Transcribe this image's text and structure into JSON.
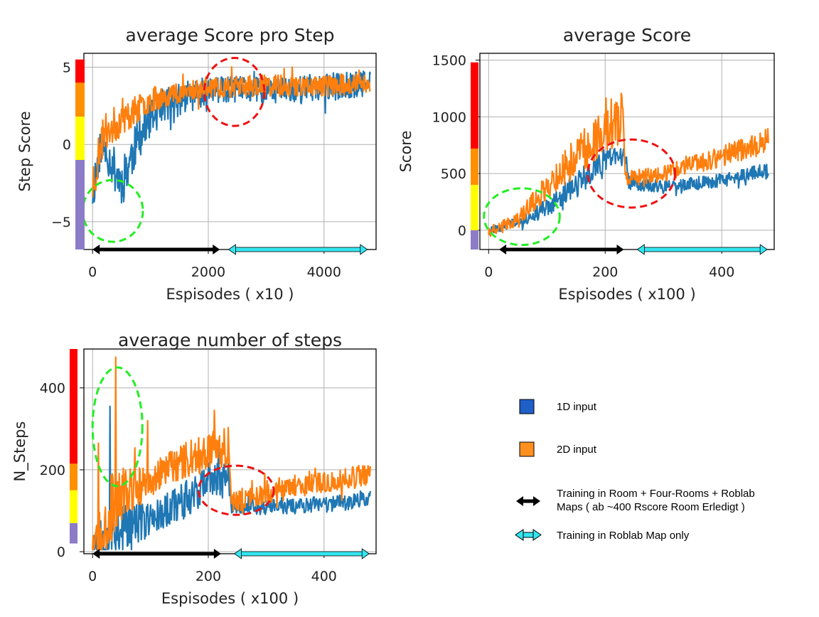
{
  "colors": {
    "series_1d": "#1f77b4",
    "series_2d": "#ff7f0e",
    "arrow_phase1": "#000000",
    "arrow_phase2": "#33e6f0",
    "circle_green": "#22ee22",
    "circle_red": "#ee1111",
    "band_red": "#ff0000",
    "band_orange": "#ff9000",
    "band_yellow": "#ffff00",
    "band_purple": "#8c7cc8",
    "legend_swatch_1d": "#1f5fc8",
    "legend_swatch_2d": "#ff9020"
  },
  "legend": {
    "item_1d": "1D input",
    "item_2d": "2D input",
    "arrow_phase1_line1": "Training in Room + Four-Rooms + Roblab",
    "arrow_phase1_line2": "Maps ( ab ~400 Rscore Room Erledigt )",
    "arrow_phase2": "Training in Roblab Map only"
  },
  "chart_data": [
    {
      "type": "line",
      "title": "average Score pro Step",
      "xlabel": "Espisodes ( x10 )",
      "ylabel": "Step Score",
      "xlim": [
        -150,
        4900
      ],
      "ylim": [
        -6.8,
        5.9
      ],
      "xticks": [
        0,
        2000,
        4000
      ],
      "yticks": [
        -5,
        0,
        5
      ],
      "xtick_labels": [
        "0",
        "2000",
        "4000"
      ],
      "ytick_labels": [
        "−5",
        "0",
        "5"
      ],
      "grid": true,
      "x_end": 4800,
      "series": [
        {
          "key": "1d",
          "keypoints": [
            [
              0,
              -3.0
            ],
            [
              150,
              0.0
            ],
            [
              300,
              -1.0
            ],
            [
              500,
              -2.5
            ],
            [
              800,
              0.5
            ],
            [
              1200,
              2.5
            ],
            [
              2000,
              3.5
            ],
            [
              3000,
              3.5
            ],
            [
              4000,
              3.7
            ],
            [
              4800,
              3.9
            ]
          ],
          "noise": [
            1.6,
            1.2,
            1.3,
            1.6,
            1.4,
            1.1,
            0.9,
            0.9,
            0.9,
            0.9
          ],
          "clip": [
            -6.2,
            5.5
          ],
          "n": 520,
          "seed": 11
        },
        {
          "key": "2d",
          "keypoints": [
            [
              0,
              -2.5
            ],
            [
              200,
              0.8
            ],
            [
              600,
              1.8
            ],
            [
              1000,
              2.9
            ],
            [
              1500,
              3.4
            ],
            [
              2000,
              3.7
            ],
            [
              3000,
              3.8
            ],
            [
              4000,
              3.8
            ],
            [
              4800,
              4.0
            ]
          ],
          "noise": [
            1.8,
            1.3,
            1.0,
            0.8,
            0.7,
            0.7,
            0.7,
            0.7,
            0.7
          ],
          "clip": [
            -6.0,
            5.2
          ],
          "n": 520,
          "seed": 23
        }
      ],
      "phase_arrows": [
        {
          "color_key": "arrow_phase1",
          "from": 0,
          "to": 2200
        },
        {
          "color_key": "arrow_phase2",
          "from": 2350,
          "to": 4750
        }
      ],
      "ellipses": [
        {
          "color_key": "circle_green",
          "cx": 350,
          "cy": -4.3,
          "rx": 520,
          "ry": 2.0
        },
        {
          "color_key": "circle_red",
          "cx": 2450,
          "cy": 3.4,
          "rx": 520,
          "ry": 2.2
        }
      ],
      "bands": [
        {
          "color_key": "band_purple",
          "from": -6.8,
          "to": -1.0
        },
        {
          "color_key": "band_yellow",
          "from": -1.0,
          "to": 1.8
        },
        {
          "color_key": "band_orange",
          "from": 1.8,
          "to": 4.0
        },
        {
          "color_key": "band_red",
          "from": 4.0,
          "to": 5.5
        }
      ]
    },
    {
      "type": "line",
      "title": "average Score",
      "xlabel": "Espisodes ( x100 )",
      "ylabel": "Score",
      "xlim": [
        -15,
        490
      ],
      "ylim": [
        -170,
        1560
      ],
      "xticks": [
        0,
        200,
        400
      ],
      "yticks": [
        0,
        500,
        1000,
        1500
      ],
      "xtick_labels": [
        "0",
        "200",
        "400"
      ],
      "ytick_labels": [
        "0",
        "500",
        "1000",
        "1500"
      ],
      "grid": true,
      "x_end": 480,
      "series": [
        {
          "key": "1d",
          "keypoints": [
            [
              0,
              -10
            ],
            [
              50,
              70
            ],
            [
              100,
              200
            ],
            [
              150,
              400
            ],
            [
              200,
              620
            ],
            [
              235,
              660
            ],
            [
              240,
              420
            ],
            [
              300,
              380
            ],
            [
              400,
              440
            ],
            [
              480,
              530
            ]
          ],
          "noise": [
            30,
            50,
            80,
            120,
            100,
            80,
            60,
            55,
            60,
            65
          ],
          "clip": [
            -80,
            900
          ],
          "n": 480,
          "seed": 31
        },
        {
          "key": "2d",
          "keypoints": [
            [
              0,
              -20
            ],
            [
              50,
              100
            ],
            [
              100,
              380
            ],
            [
              150,
              650
            ],
            [
              200,
              900
            ],
            [
              230,
              1000
            ],
            [
              235,
              450
            ],
            [
              300,
              500
            ],
            [
              400,
              650
            ],
            [
              480,
              790
            ]
          ],
          "noise": [
            40,
            60,
            120,
            180,
            220,
            230,
            70,
            70,
            90,
            110
          ],
          "clip": [
            -90,
            1470
          ],
          "n": 480,
          "seed": 41
        }
      ],
      "phase_arrows": [
        {
          "color_key": "arrow_phase1",
          "from": 18,
          "to": 232
        },
        {
          "color_key": "arrow_phase2",
          "from": 255,
          "to": 478
        }
      ],
      "ellipses": [
        {
          "color_key": "circle_green",
          "cx": 57,
          "cy": 120,
          "rx": 65,
          "ry": 250
        },
        {
          "color_key": "circle_red",
          "cx": 245,
          "cy": 500,
          "rx": 75,
          "ry": 300
        }
      ],
      "bands": [
        {
          "color_key": "band_purple",
          "from": -170,
          "to": 0
        },
        {
          "color_key": "band_yellow",
          "from": 0,
          "to": 400
        },
        {
          "color_key": "band_orange",
          "from": 400,
          "to": 720
        },
        {
          "color_key": "band_red",
          "from": 720,
          "to": 1480
        }
      ]
    },
    {
      "type": "line",
      "title": "average number of steps",
      "xlabel": "Espisodes ( x100 )",
      "ylabel": "N_Steps",
      "xlim": [
        -15,
        490
      ],
      "ylim": [
        -5,
        495
      ],
      "xticks": [
        0,
        200,
        400
      ],
      "yticks": [
        0,
        200,
        400
      ],
      "xtick_labels": [
        "0",
        "200",
        "400"
      ],
      "ytick_labels": [
        "0",
        "200",
        "400"
      ],
      "grid": true,
      "x_end": 480,
      "series": [
        {
          "key": "1d",
          "keypoints": [
            [
              0,
              20
            ],
            [
              30,
              50
            ],
            [
              60,
              60
            ],
            [
              100,
              80
            ],
            [
              150,
              120
            ],
            [
              200,
              170
            ],
            [
              235,
              180
            ],
            [
              240,
              110
            ],
            [
              300,
              110
            ],
            [
              400,
              115
            ],
            [
              480,
              130
            ]
          ],
          "noise": [
            40,
            80,
            70,
            40,
            45,
            50,
            45,
            20,
            20,
            20,
            22
          ],
          "clip": [
            5,
            360
          ],
          "n": 480,
          "seed": 53
        },
        {
          "key": "2d",
          "keypoints": [
            [
              0,
              20
            ],
            [
              30,
              100
            ],
            [
              60,
              150
            ],
            [
              100,
              170
            ],
            [
              150,
              220
            ],
            [
              200,
              250
            ],
            [
              235,
              260
            ],
            [
              240,
              120
            ],
            [
              300,
              140
            ],
            [
              400,
              170
            ],
            [
              480,
              190
            ]
          ],
          "noise": [
            40,
            90,
            60,
            40,
            45,
            50,
            50,
            25,
            25,
            25,
            28
          ],
          "clip": [
            5,
            470
          ],
          "n": 480,
          "seed": 67
        }
      ],
      "spikes": [
        {
          "key": "2d",
          "x": 40,
          "y": 475
        },
        {
          "key": "1d",
          "x": 30,
          "y": 355
        },
        {
          "key": "2d",
          "x": 10,
          "y": 265
        },
        {
          "key": "2d",
          "x": 95,
          "y": 320
        },
        {
          "key": "2d",
          "x": 210,
          "y": 345
        }
      ],
      "phase_arrows": [
        {
          "color_key": "arrow_phase1",
          "from": 0,
          "to": 222
        },
        {
          "color_key": "arrow_phase2",
          "from": 245,
          "to": 478
        }
      ],
      "ellipses": [
        {
          "color_key": "circle_green",
          "cx": 43,
          "cy": 305,
          "rx": 43,
          "ry": 145
        },
        {
          "color_key": "circle_red",
          "cx": 248,
          "cy": 150,
          "rx": 65,
          "ry": 60
        }
      ],
      "bands": [
        {
          "color_key": "band_purple",
          "from": 20,
          "to": 70
        },
        {
          "color_key": "band_yellow",
          "from": 70,
          "to": 150
        },
        {
          "color_key": "band_orange",
          "from": 150,
          "to": 215
        },
        {
          "color_key": "band_red",
          "from": 215,
          "to": 495
        }
      ]
    }
  ]
}
